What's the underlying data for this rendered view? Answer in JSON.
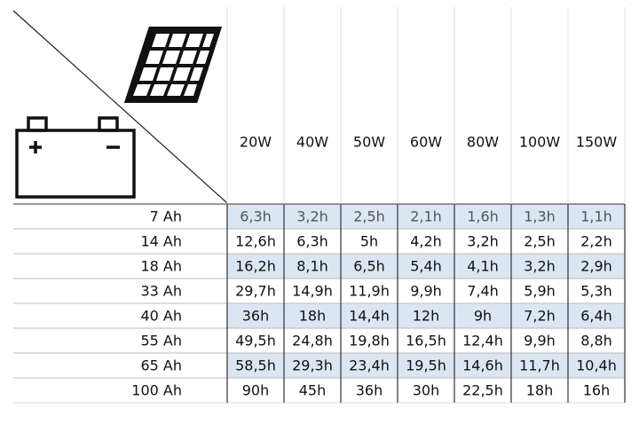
{
  "header": {
    "columns": [
      "20W",
      "40W",
      "50W",
      "60W",
      "80W",
      "100W",
      "150W"
    ]
  },
  "table": {
    "rows": [
      {
        "label": "7 Ah",
        "cells": [
          "6,3h",
          "3,2h",
          "2,5h",
          "2,1h",
          "1,6h",
          "1,3h",
          "1,1h"
        ]
      },
      {
        "label": "14 Ah",
        "cells": [
          "12,6h",
          "6,3h",
          "5h",
          "4,2h",
          "3,2h",
          "2,5h",
          "2,2h"
        ]
      },
      {
        "label": "18 Ah",
        "cells": [
          "16,2h",
          "8,1h",
          "6,5h",
          "5,4h",
          "4,1h",
          "3,2h",
          "2,9h"
        ]
      },
      {
        "label": "33 Ah",
        "cells": [
          "29,7h",
          "14,9h",
          "11,9h",
          "9,9h",
          "7,4h",
          "5,9h",
          "5,3h"
        ]
      },
      {
        "label": "40 Ah",
        "cells": [
          "36h",
          "18h",
          "14,4h",
          "12h",
          "9h",
          "7,2h",
          "6,4h"
        ]
      },
      {
        "label": "55 Ah",
        "cells": [
          "49,5h",
          "24,8h",
          "19,8h",
          "16,5h",
          "12,4h",
          "9,9h",
          "8,8h"
        ]
      },
      {
        "label": "65 Ah",
        "cells": [
          "58,5h",
          "29,3h",
          "23,4h",
          "19,5h",
          "14,6h",
          "11,7h",
          "10,4h"
        ]
      },
      {
        "label": "100 Ah",
        "cells": [
          "90h",
          "45h",
          "36h",
          "30h",
          "22,5h",
          "18h",
          "16h"
        ]
      }
    ]
  }
}
